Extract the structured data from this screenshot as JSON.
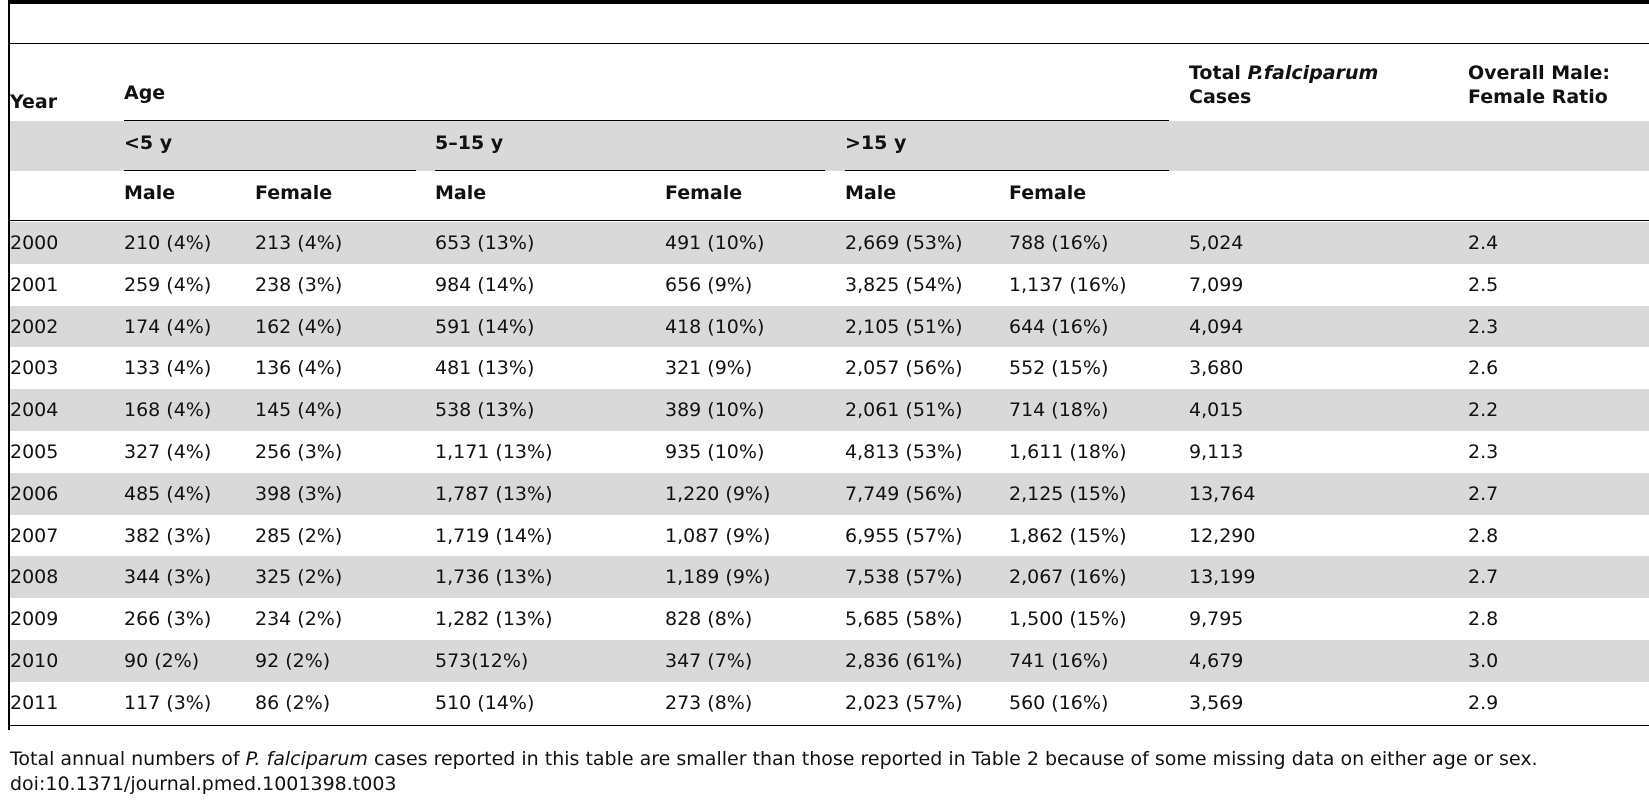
{
  "table": {
    "header": {
      "year": "Year",
      "age": "Age",
      "total_label_1": "Total",
      "total_label_species": "P.falciparum",
      "total_label_2": "Cases",
      "ratio_label_1": "Overall Male:",
      "ratio_label_2": "Female Ratio",
      "groups": [
        "<5 y",
        "5–15 y",
        ">15 y"
      ],
      "sex": [
        "Male",
        "Female",
        "Male",
        "Female",
        "Male",
        "Female"
      ]
    },
    "rows": [
      [
        "2000",
        "210 (4%)",
        "213 (4%)",
        "653 (13%)",
        "491 (10%)",
        "2,669 (53%)",
        "788 (16%)",
        "5,024",
        "2.4"
      ],
      [
        "2001",
        "259 (4%)",
        "238 (3%)",
        "984 (14%)",
        "656 (9%)",
        "3,825 (54%)",
        "1,137 (16%)",
        "7,099",
        "2.5"
      ],
      [
        "2002",
        "174 (4%)",
        "162 (4%)",
        "591 (14%)",
        "418 (10%)",
        "2,105 (51%)",
        "644 (16%)",
        "4,094",
        "2.3"
      ],
      [
        "2003",
        "133 (4%)",
        "136 (4%)",
        "481 (13%)",
        "321 (9%)",
        "2,057 (56%)",
        "552 (15%)",
        "3,680",
        "2.6"
      ],
      [
        "2004",
        "168 (4%)",
        "145 (4%)",
        "538 (13%)",
        "389 (10%)",
        "2,061 (51%)",
        "714 (18%)",
        "4,015",
        "2.2"
      ],
      [
        "2005",
        "327 (4%)",
        "256 (3%)",
        "1,171 (13%)",
        "935 (10%)",
        "4,813 (53%)",
        "1,611 (18%)",
        "9,113",
        "2.3"
      ],
      [
        "2006",
        "485 (4%)",
        "398 (3%)",
        "1,787 (13%)",
        "1,220 (9%)",
        "7,749 (56%)",
        "2,125 (15%)",
        "13,764",
        "2.7"
      ],
      [
        "2007",
        "382 (3%)",
        "285 (2%)",
        "1,719 (14%)",
        "1,087 (9%)",
        "6,955 (57%)",
        "1,862 (15%)",
        "12,290",
        "2.8"
      ],
      [
        "2008",
        "344 (3%)",
        "325 (2%)",
        "1,736 (13%)",
        "1,189 (9%)",
        "7,538 (57%)",
        "2,067 (16%)",
        "13,199",
        "2.7"
      ],
      [
        "2009",
        "266 (3%)",
        "234 (2%)",
        "1,282 (13%)",
        "828 (8%)",
        "5,685 (58%)",
        "1,500 (15%)",
        "9,795",
        "2.8"
      ],
      [
        "2010",
        "90 (2%)",
        "92 (2%)",
        "573(12%)",
        "347 (7%)",
        "2,836 (61%)",
        "741 (16%)",
        "4,679",
        "3.0"
      ],
      [
        "2011",
        "117 (3%)",
        "86 (2%)",
        "510 (14%)",
        "273 (8%)",
        "2,023 (57%)",
        "560 (16%)",
        "3,569",
        "2.9"
      ]
    ]
  },
  "footnote": {
    "pre": "Total annual numbers of ",
    "species": "P. falciparum",
    "post": " cases reported in this table are smaller than those reported in Table 2 because of some missing data on either age or sex.",
    "doi": "doi:10.1371/journal.pmed.1001398.t003"
  },
  "colors": {
    "row_shade": "#d9d9d9",
    "rule": "#000000"
  }
}
